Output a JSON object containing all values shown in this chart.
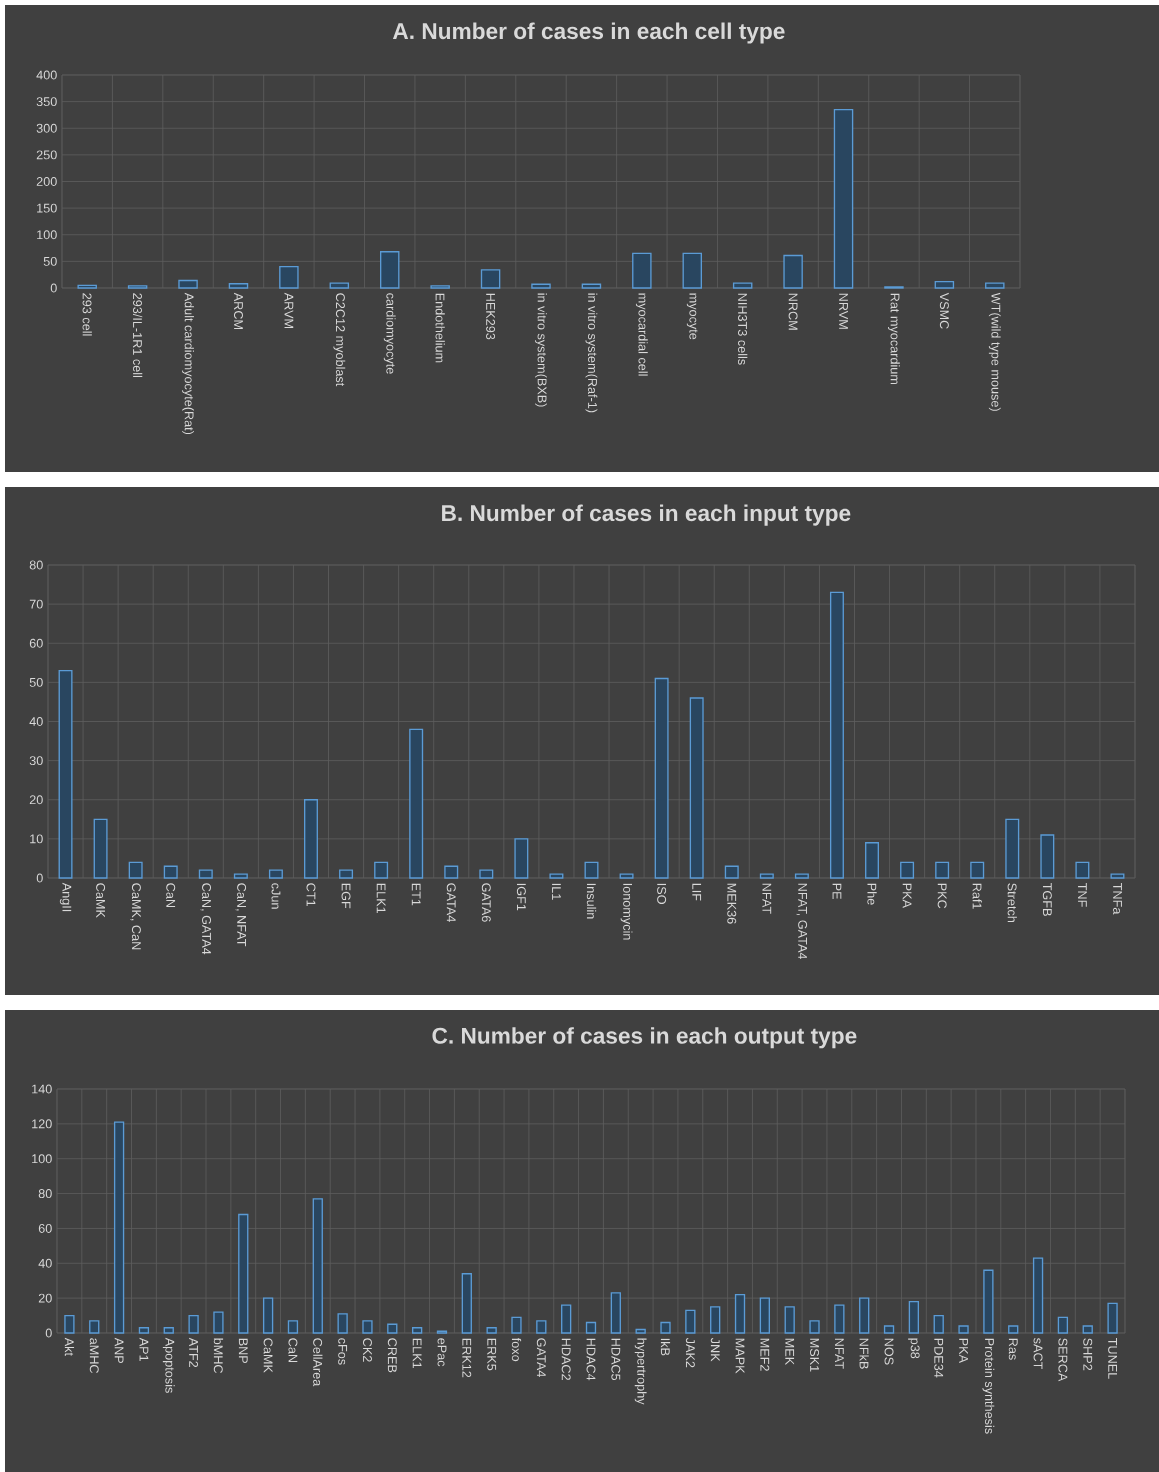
{
  "chart_data": [
    {
      "type": "bar",
      "title": "A. Number of cases in each cell type",
      "categories": [
        "293 cell",
        "293/IL-1R1 cell",
        "Adult cardiomyocyte(Rat)",
        "ARCM",
        "ARVM",
        "C2C12 myoblast",
        "cardiomyocyte",
        "Endothelium",
        "HEK293",
        "in vitro system(BXB)",
        "in vitro system(Raf-1)",
        "myocardial cell",
        "myocyte",
        "NIH3T3 cells",
        "NRCM",
        "NRVM",
        "Rat myocardium",
        "VSMC",
        "WT(wild type mouse)"
      ],
      "values": [
        5,
        4,
        14,
        8,
        40,
        9,
        68,
        4,
        34,
        7,
        7,
        65,
        65,
        9,
        61,
        335,
        2,
        12,
        9
      ],
      "color": "#5b9bd5",
      "ylim": [
        0,
        400
      ],
      "yticks": [
        0,
        50,
        100,
        150,
        200,
        250,
        300,
        350,
        400
      ],
      "grid": true
    },
    {
      "type": "bar",
      "title": "B. Number of cases in each input type",
      "categories": [
        "AngII",
        "CaMK",
        "CaMK, CaN",
        "CaN",
        "CaN, GATA4",
        "CaN, NFAT",
        "cJun",
        "CT1",
        "EGF",
        "ELK1",
        "ET1",
        "GATA4",
        "GATA6",
        "IGF1",
        "IL1",
        "Insulin",
        "Ionomycin",
        "ISO",
        "LIF",
        "MEK36",
        "NFAT",
        "NFAT, GATA4",
        "PE",
        "Phe",
        "PKA",
        "PKC",
        "Raf1",
        "Stretch",
        "TGFB",
        "TNF",
        "TNFa"
      ],
      "values": [
        53,
        15,
        4,
        3,
        2,
        1,
        2,
        20,
        2,
        4,
        38,
        3,
        2,
        10,
        1,
        4,
        1,
        51,
        46,
        3,
        1,
        1,
        73,
        9,
        4,
        4,
        4,
        15,
        11,
        4,
        1
      ],
      "color": "#5b9bd5",
      "ylim": [
        0,
        80
      ],
      "yticks": [
        0,
        10,
        20,
        30,
        40,
        50,
        60,
        70,
        80
      ],
      "grid": true
    },
    {
      "type": "bar",
      "title": "C. Number of cases in each output type",
      "categories": [
        "Akt",
        "aMHC",
        "ANP",
        "AP1",
        "Apoptosis",
        "ATF2",
        "bMHC",
        "BNP",
        "CaMK",
        "CaN",
        "CellArea",
        "cFos",
        "CK2",
        "CREB",
        "ELK1",
        "ePac",
        "ERK12",
        "ERK5",
        "foxo",
        "GATA4",
        "HDAC2",
        "HDAC4",
        "HDAC5",
        "hypertrophy",
        "IkB",
        "JAK2",
        "JNK",
        "MAPK",
        "MEF2",
        "MEK",
        "MSK1",
        "NFAT",
        "NFkB",
        "NOS",
        "p38",
        "PDE34",
        "PKA",
        "Protein synthesis",
        "Ras",
        "sACT",
        "SERCA",
        "SHP2",
        "TUNEL"
      ],
      "values": [
        10,
        7,
        121,
        3,
        3,
        10,
        12,
        68,
        20,
        7,
        77,
        11,
        7,
        5,
        3,
        1,
        34,
        3,
        9,
        7,
        16,
        6,
        23,
        2,
        6,
        13,
        15,
        22,
        20,
        15,
        7,
        16,
        20,
        4,
        18,
        10,
        4,
        36,
        4,
        43,
        9,
        4,
        17
      ],
      "color": "#5b9bd5",
      "ylim": [
        0,
        140
      ],
      "yticks": [
        0,
        20,
        40,
        60,
        80,
        100,
        120,
        140
      ],
      "grid": true
    }
  ]
}
